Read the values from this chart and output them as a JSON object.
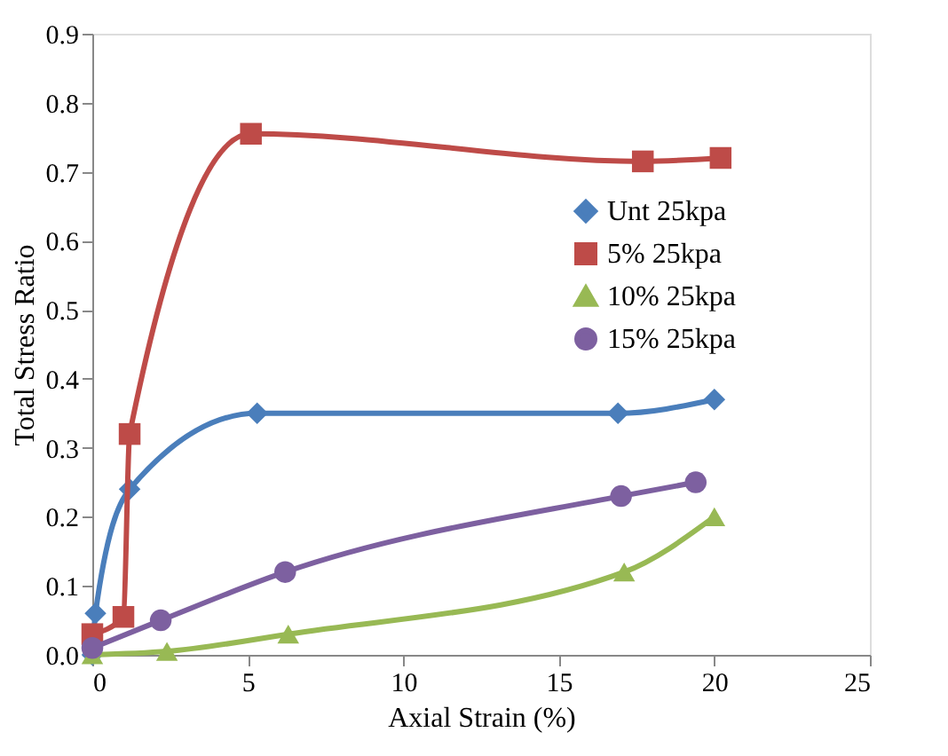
{
  "chart_data": {
    "type": "line",
    "xlabel": "Axial Strain (%)",
    "ylabel": "Total Stress Ratio",
    "xlim": [
      0,
      25
    ],
    "xticks": [
      0,
      5,
      10,
      15,
      20,
      25
    ],
    "ylim": [
      0,
      0.9
    ],
    "yticks": [
      {
        "value": 0,
        "label": "0.0"
      },
      {
        "value": 0.1,
        "label": "0.1"
      },
      {
        "value": 0.2,
        "label": "0.2"
      },
      {
        "value": 0.3,
        "label": "0.3"
      },
      {
        "value": 0.4,
        "label": "0.4"
      },
      {
        "value": 0.5,
        "label": "0.5"
      },
      {
        "value": 0.6,
        "label": "0.6"
      },
      {
        "value": 0.7,
        "label": "0.7"
      },
      {
        "value": 0.8,
        "label": "0.8"
      },
      {
        "value": 0.9,
        "label": "0.9"
      }
    ],
    "grid": false,
    "legend": "right",
    "line_style": "solid",
    "series": [
      {
        "name": "Unt 25kpa",
        "color": "#4a7ebb",
        "marker": "diamond",
        "x": [
          0,
          0.1,
          1.2,
          5.3,
          16.9,
          20
        ],
        "values": [
          0,
          0.06,
          0.24,
          0.35,
          0.35,
          0.37
        ]
      },
      {
        "name": "5% 25kpa",
        "color": "#be4b48",
        "marker": "square",
        "x": [
          0,
          1,
          1.2,
          5.1,
          17.7,
          20.2
        ],
        "values": [
          0.03,
          0.055,
          0.32,
          0.755,
          0.715,
          0.72
        ]
      },
      {
        "name": "10% 25kpa",
        "color": "#98b954",
        "marker": "triangle",
        "x": [
          0,
          2.4,
          6.3,
          17.1,
          20
        ],
        "values": [
          0,
          0.005,
          0.03,
          0.12,
          0.2
        ]
      },
      {
        "name": "15% 25kpa",
        "color": "#7d60a0",
        "marker": "circle",
        "x": [
          0,
          2.2,
          6.2,
          17,
          19.4
        ],
        "values": [
          0.01,
          0.05,
          0.12,
          0.23,
          0.25
        ]
      }
    ]
  }
}
